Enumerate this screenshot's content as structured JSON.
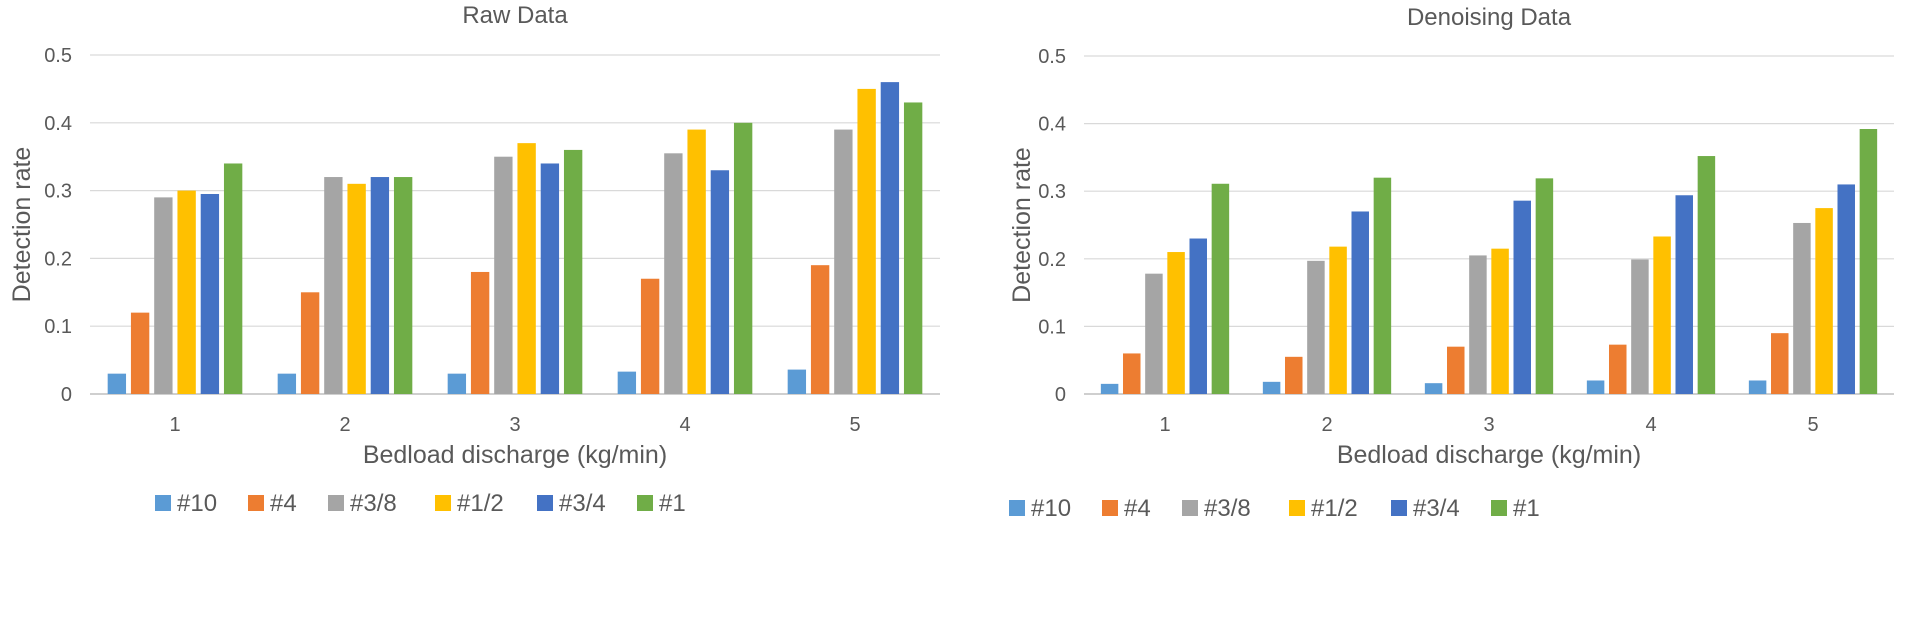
{
  "chart_data": [
    {
      "type": "bar",
      "title": "Raw Data",
      "xlabel": "Bedload discharge (kg/min)",
      "ylabel": "Detection rate",
      "ylim": [
        0,
        0.5
      ],
      "yticks": [
        "0",
        "0.1",
        "0.2",
        "0.3",
        "0.4",
        "0.5"
      ],
      "categories": [
        "1",
        "2",
        "3",
        "4",
        "5"
      ],
      "legend_position": "bottom",
      "grid": true,
      "series": [
        {
          "name": "#10",
          "color": "#5b9bd5",
          "values": [
            0.03,
            0.03,
            0.03,
            0.033,
            0.036
          ]
        },
        {
          "name": "#4",
          "color": "#ed7d31",
          "values": [
            0.12,
            0.15,
            0.18,
            0.17,
            0.19
          ]
        },
        {
          "name": "#3/8",
          "color": "#a5a5a5",
          "values": [
            0.29,
            0.32,
            0.35,
            0.355,
            0.39
          ]
        },
        {
          "name": "#1/2",
          "color": "#ffc000",
          "values": [
            0.3,
            0.31,
            0.37,
            0.39,
            0.45
          ]
        },
        {
          "name": "#3/4",
          "color": "#4472c4",
          "values": [
            0.295,
            0.32,
            0.34,
            0.33,
            0.46
          ]
        },
        {
          "name": "#1",
          "color": "#70ad47",
          "values": [
            0.34,
            0.32,
            0.36,
            0.4,
            0.43
          ]
        }
      ]
    },
    {
      "type": "bar",
      "title": "Denoising Data",
      "xlabel": "Bedload discharge (kg/min)",
      "ylabel": "Detection rate",
      "ylim": [
        0,
        0.5
      ],
      "yticks": [
        "0",
        "0.1",
        "0.2",
        "0.3",
        "0.4",
        "0.5"
      ],
      "categories": [
        "1",
        "2",
        "3",
        "4",
        "5"
      ],
      "legend_position": "bottom",
      "grid": true,
      "series": [
        {
          "name": "#10",
          "color": "#5b9bd5",
          "values": [
            0.015,
            0.018,
            0.016,
            0.02,
            0.02
          ]
        },
        {
          "name": "#4",
          "color": "#ed7d31",
          "values": [
            0.06,
            0.055,
            0.07,
            0.073,
            0.09
          ]
        },
        {
          "name": "#3/8",
          "color": "#a5a5a5",
          "values": [
            0.178,
            0.197,
            0.205,
            0.199,
            0.253
          ]
        },
        {
          "name": "#1/2",
          "color": "#ffc000",
          "values": [
            0.21,
            0.218,
            0.215,
            0.233,
            0.275
          ]
        },
        {
          "name": "#3/4",
          "color": "#4472c4",
          "values": [
            0.23,
            0.27,
            0.286,
            0.294,
            0.31
          ]
        },
        {
          "name": "#1",
          "color": "#70ad47",
          "values": [
            0.311,
            0.32,
            0.319,
            0.352,
            0.392
          ]
        }
      ]
    }
  ]
}
